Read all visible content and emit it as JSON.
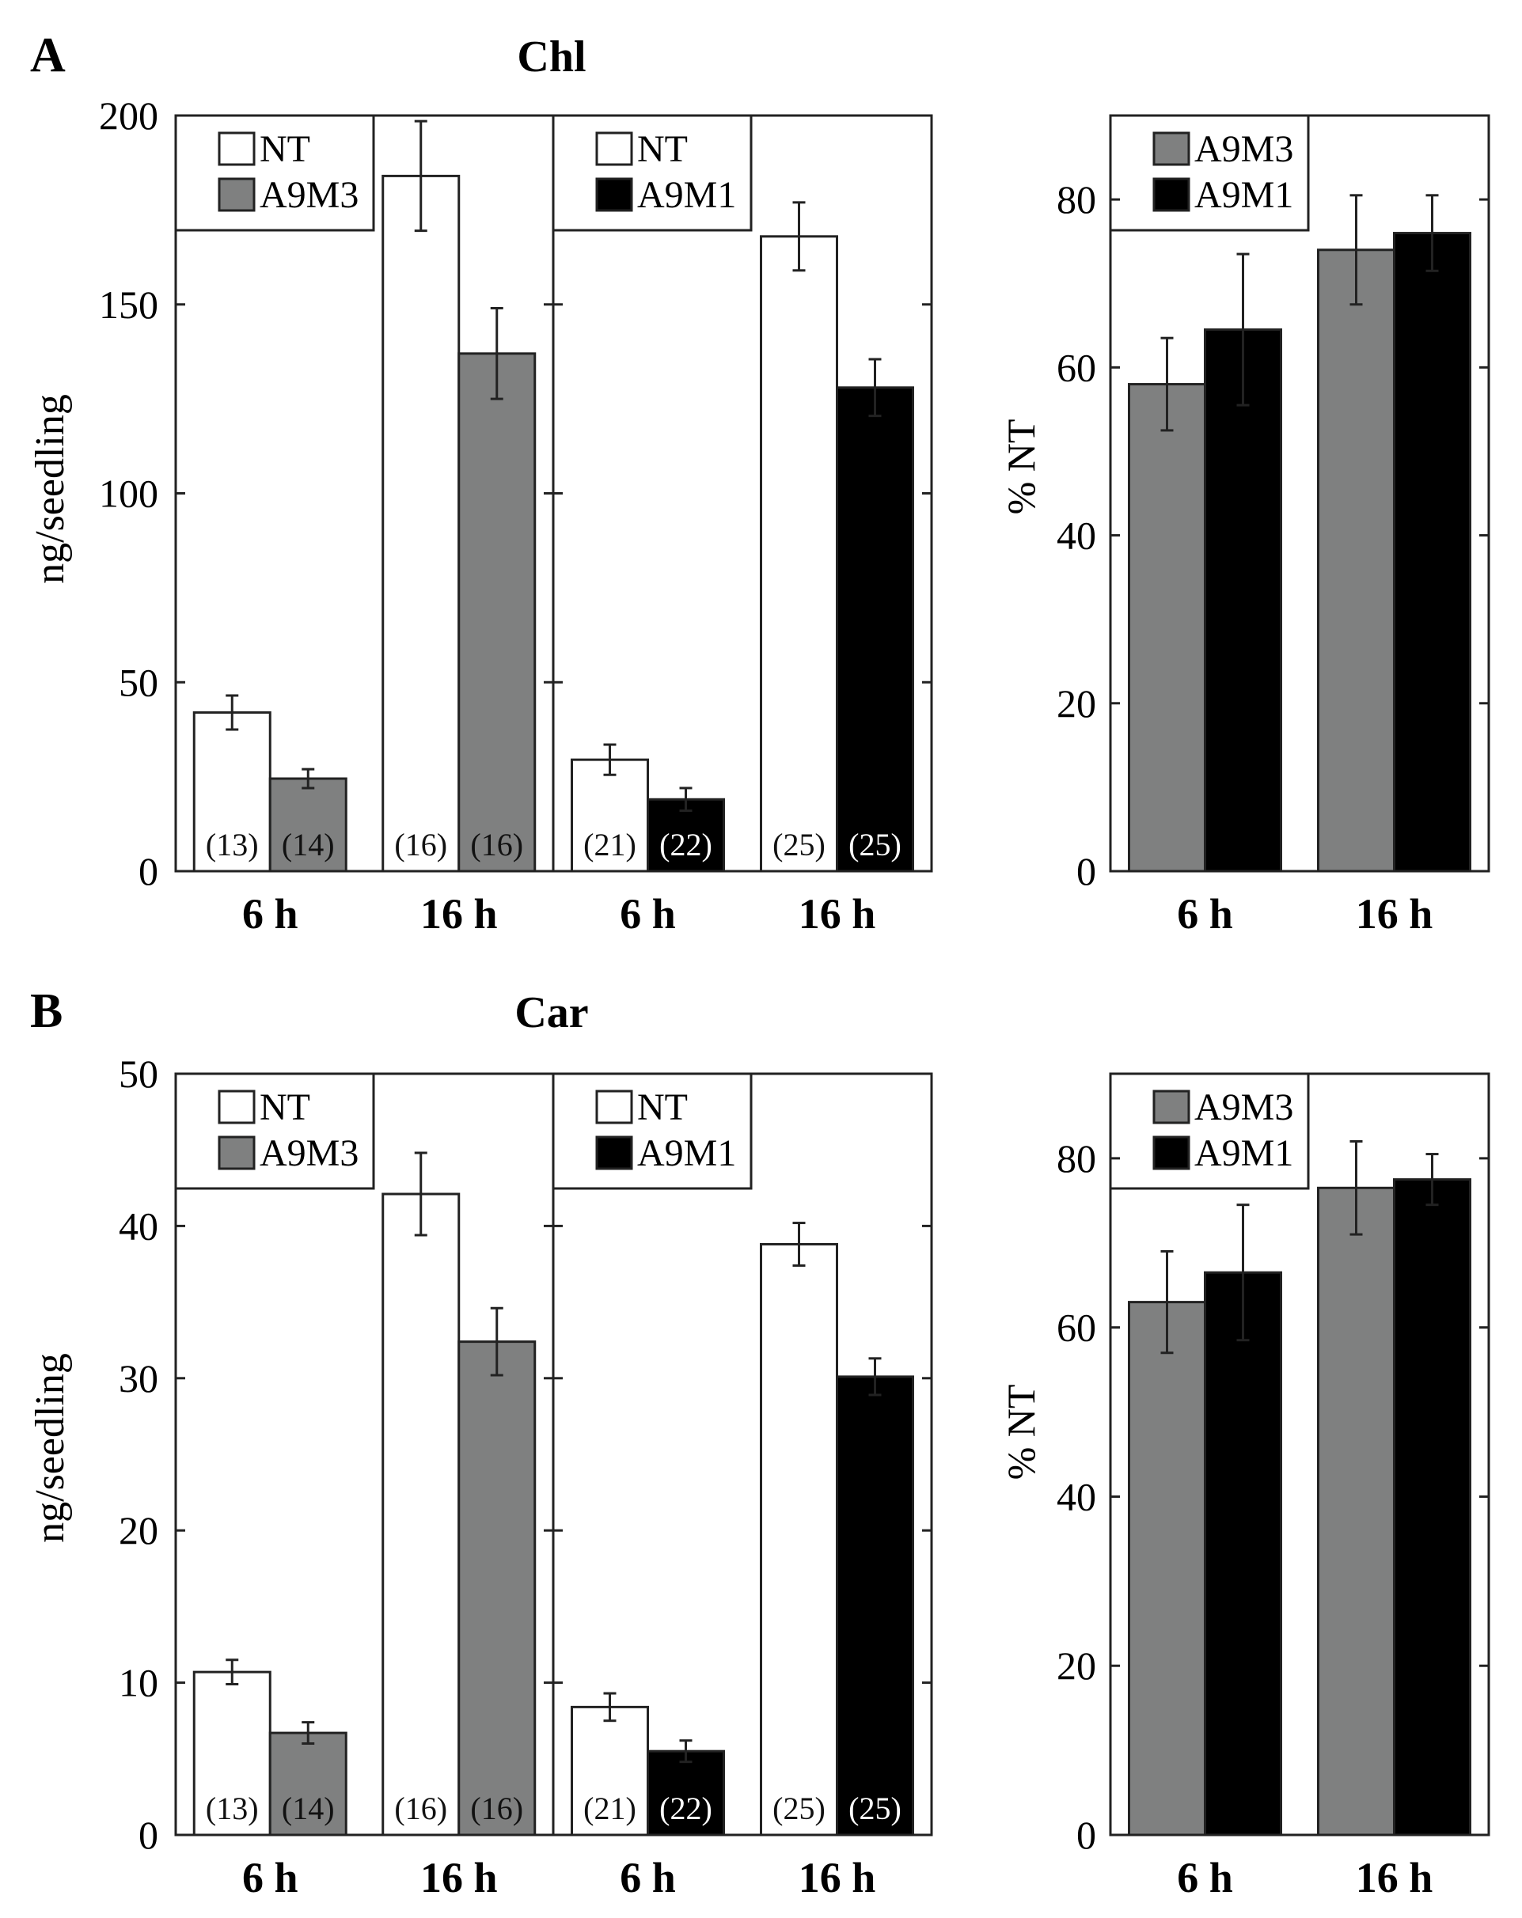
{
  "colors": {
    "nt": "#ffffff",
    "a9m3": "#7f8080",
    "a9m1": "#000000",
    "axis": "#222222"
  },
  "chart_data": [
    {
      "id": "A",
      "panel_label": "A",
      "type": "bar",
      "title": "Chl",
      "ylabel": "ng/seedling",
      "ylim": [
        0,
        200
      ],
      "yticks": [
        0,
        50,
        100,
        150,
        200
      ],
      "ytick_labels": [
        "0",
        "50",
        "100",
        "150",
        "200"
      ],
      "sections": [
        {
          "legend": [
            {
              "label": "NT",
              "series": "nt"
            },
            {
              "label": "A9M3",
              "series": "a9m3"
            }
          ],
          "groups": [
            {
              "category": "6 h",
              "bars": [
                {
                  "series": "nt",
                  "value": 42,
                  "error": 4.5,
                  "n_label": "(13)"
                },
                {
                  "series": "a9m3",
                  "value": 24.5,
                  "error": 2.5,
                  "n_label": "(14)"
                }
              ]
            },
            {
              "category": "16 h",
              "bars": [
                {
                  "series": "nt",
                  "value": 184,
                  "error": 14.5,
                  "n_label": "(16)"
                },
                {
                  "series": "a9m3",
                  "value": 137,
                  "error": 12,
                  "n_label": "(16)"
                }
              ]
            }
          ]
        },
        {
          "legend": [
            {
              "label": "NT",
              "series": "nt"
            },
            {
              "label": "A9M1",
              "series": "a9m1"
            }
          ],
          "groups": [
            {
              "category": "6 h",
              "bars": [
                {
                  "series": "nt",
                  "value": 29.5,
                  "error": 4,
                  "n_label": "(21)"
                },
                {
                  "series": "a9m1",
                  "value": 19,
                  "error": 3,
                  "n_label": "(22)"
                }
              ]
            },
            {
              "category": "16 h",
              "bars": [
                {
                  "series": "nt",
                  "value": 168,
                  "error": 9,
                  "n_label": "(25)"
                },
                {
                  "series": "a9m1",
                  "value": 128,
                  "error": 7.5,
                  "n_label": "(25)"
                }
              ]
            }
          ]
        }
      ]
    },
    {
      "id": "A-pct",
      "type": "bar",
      "title": "",
      "ylabel": "% NT",
      "ylim": [
        0,
        90
      ],
      "yticks": [
        0,
        20,
        40,
        60,
        80
      ],
      "ytick_labels": [
        "0",
        "20",
        "40",
        "60",
        "80"
      ],
      "legend": [
        {
          "label": "A9M3",
          "series": "a9m3"
        },
        {
          "label": "A9M1",
          "series": "a9m1"
        }
      ],
      "groups": [
        {
          "category": "6 h",
          "bars": [
            {
              "series": "a9m3",
              "value": 58,
              "error": 5.5
            },
            {
              "series": "a9m1",
              "value": 64.5,
              "error": 9
            }
          ]
        },
        {
          "category": "16 h",
          "bars": [
            {
              "series": "a9m3",
              "value": 74,
              "error": 6.5
            },
            {
              "series": "a9m1",
              "value": 76,
              "error": 4.5
            }
          ]
        }
      ]
    },
    {
      "id": "B",
      "panel_label": "B",
      "type": "bar",
      "title": "Car",
      "ylabel": "ng/seedling",
      "ylim": [
        0,
        50
      ],
      "yticks": [
        0,
        10,
        20,
        30,
        40,
        50
      ],
      "ytick_labels": [
        "0",
        "10",
        "20",
        "30",
        "40",
        "50"
      ],
      "sections": [
        {
          "legend": [
            {
              "label": "NT",
              "series": "nt"
            },
            {
              "label": "A9M3",
              "series": "a9m3"
            }
          ],
          "groups": [
            {
              "category": "6 h",
              "bars": [
                {
                  "series": "nt",
                  "value": 10.7,
                  "error": 0.8,
                  "n_label": "(13)"
                },
                {
                  "series": "a9m3",
                  "value": 6.7,
                  "error": 0.7,
                  "n_label": "(14)"
                }
              ]
            },
            {
              "category": "16 h",
              "bars": [
                {
                  "series": "nt",
                  "value": 42.1,
                  "error": 2.7,
                  "n_label": "(16)"
                },
                {
                  "series": "a9m3",
                  "value": 32.4,
                  "error": 2.2,
                  "n_label": "(16)"
                }
              ]
            }
          ]
        },
        {
          "legend": [
            {
              "label": "NT",
              "series": "nt"
            },
            {
              "label": "A9M1",
              "series": "a9m1"
            }
          ],
          "groups": [
            {
              "category": "6 h",
              "bars": [
                {
                  "series": "nt",
                  "value": 8.4,
                  "error": 0.9,
                  "n_label": "(21)"
                },
                {
                  "series": "a9m1",
                  "value": 5.5,
                  "error": 0.7,
                  "n_label": "(22)"
                }
              ]
            },
            {
              "category": "16 h",
              "bars": [
                {
                  "series": "nt",
                  "value": 38.8,
                  "error": 1.4,
                  "n_label": "(25)"
                },
                {
                  "series": "a9m1",
                  "value": 30.1,
                  "error": 1.2,
                  "n_label": "(25)"
                }
              ]
            }
          ]
        }
      ]
    },
    {
      "id": "B-pct",
      "type": "bar",
      "title": "",
      "ylabel": "% NT",
      "ylim": [
        0,
        90
      ],
      "yticks": [
        0,
        20,
        40,
        60,
        80
      ],
      "ytick_labels": [
        "0",
        "20",
        "40",
        "60",
        "80"
      ],
      "legend": [
        {
          "label": "A9M3",
          "series": "a9m3"
        },
        {
          "label": "A9M1",
          "series": "a9m1"
        }
      ],
      "groups": [
        {
          "category": "6 h",
          "bars": [
            {
              "series": "a9m3",
              "value": 63,
              "error": 6
            },
            {
              "series": "a9m1",
              "value": 66.5,
              "error": 8
            }
          ]
        },
        {
          "category": "16 h",
          "bars": [
            {
              "series": "a9m3",
              "value": 76.5,
              "error": 5.5
            },
            {
              "series": "a9m1",
              "value": 77.5,
              "error": 3
            }
          ]
        }
      ]
    }
  ]
}
